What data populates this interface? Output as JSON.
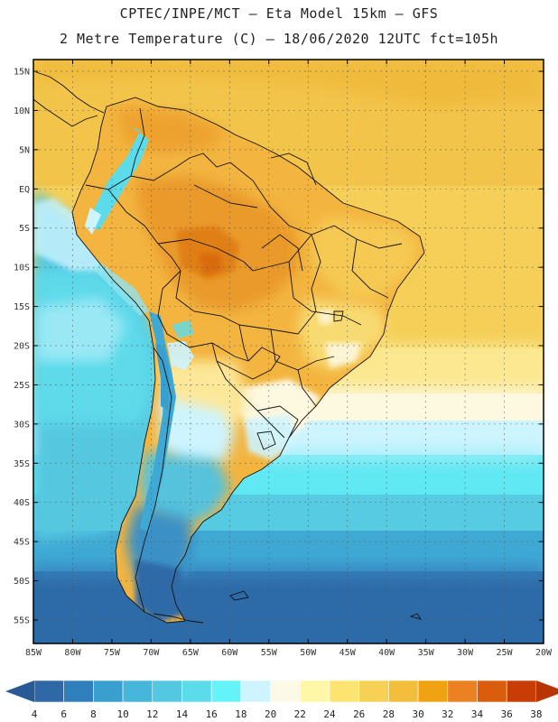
{
  "header": {
    "line1": "CPTEC/INPE/MCT –  Eta Model 15km – GFS",
    "line2": "2 Metre Temperature (C) – 18/06/2020 12UTC fct=105h"
  },
  "map": {
    "lat_labels": [
      "15N",
      "10N",
      "5N",
      "EQ",
      "5S",
      "10S",
      "15S",
      "20S",
      "25S",
      "30S",
      "35S",
      "40S",
      "45S",
      "50S",
      "55S"
    ],
    "lon_labels": [
      "85W",
      "80W",
      "75W",
      "70W",
      "65W",
      "60W",
      "55W",
      "50W",
      "45W",
      "40W",
      "35W",
      "30W",
      "25W",
      "20W"
    ],
    "lon_range_deg": [
      -85,
      -20
    ],
    "lat_range_deg": [
      -58,
      16.5
    ]
  },
  "colorbar": {
    "labels": [
      "4",
      "6",
      "8",
      "10",
      "12",
      "14",
      "16",
      "18",
      "20",
      "22",
      "24",
      "26",
      "28",
      "30",
      "32",
      "34",
      "36",
      "38"
    ],
    "colors": [
      "#2f68a6",
      "#2f7fbd",
      "#389fcf",
      "#46b6da",
      "#54c8e0",
      "#5cdceb",
      "#63f3f8",
      "#cdf4ff",
      "#fdf9e7",
      "#fef7a8",
      "#fde470",
      "#f6d155",
      "#f2be3c",
      "#f0a212",
      "#eb8120",
      "#d95d0c",
      "#c83c05"
    ],
    "low_arrow_color": "#2a5a95",
    "high_arrow_color": "#b83504"
  }
}
